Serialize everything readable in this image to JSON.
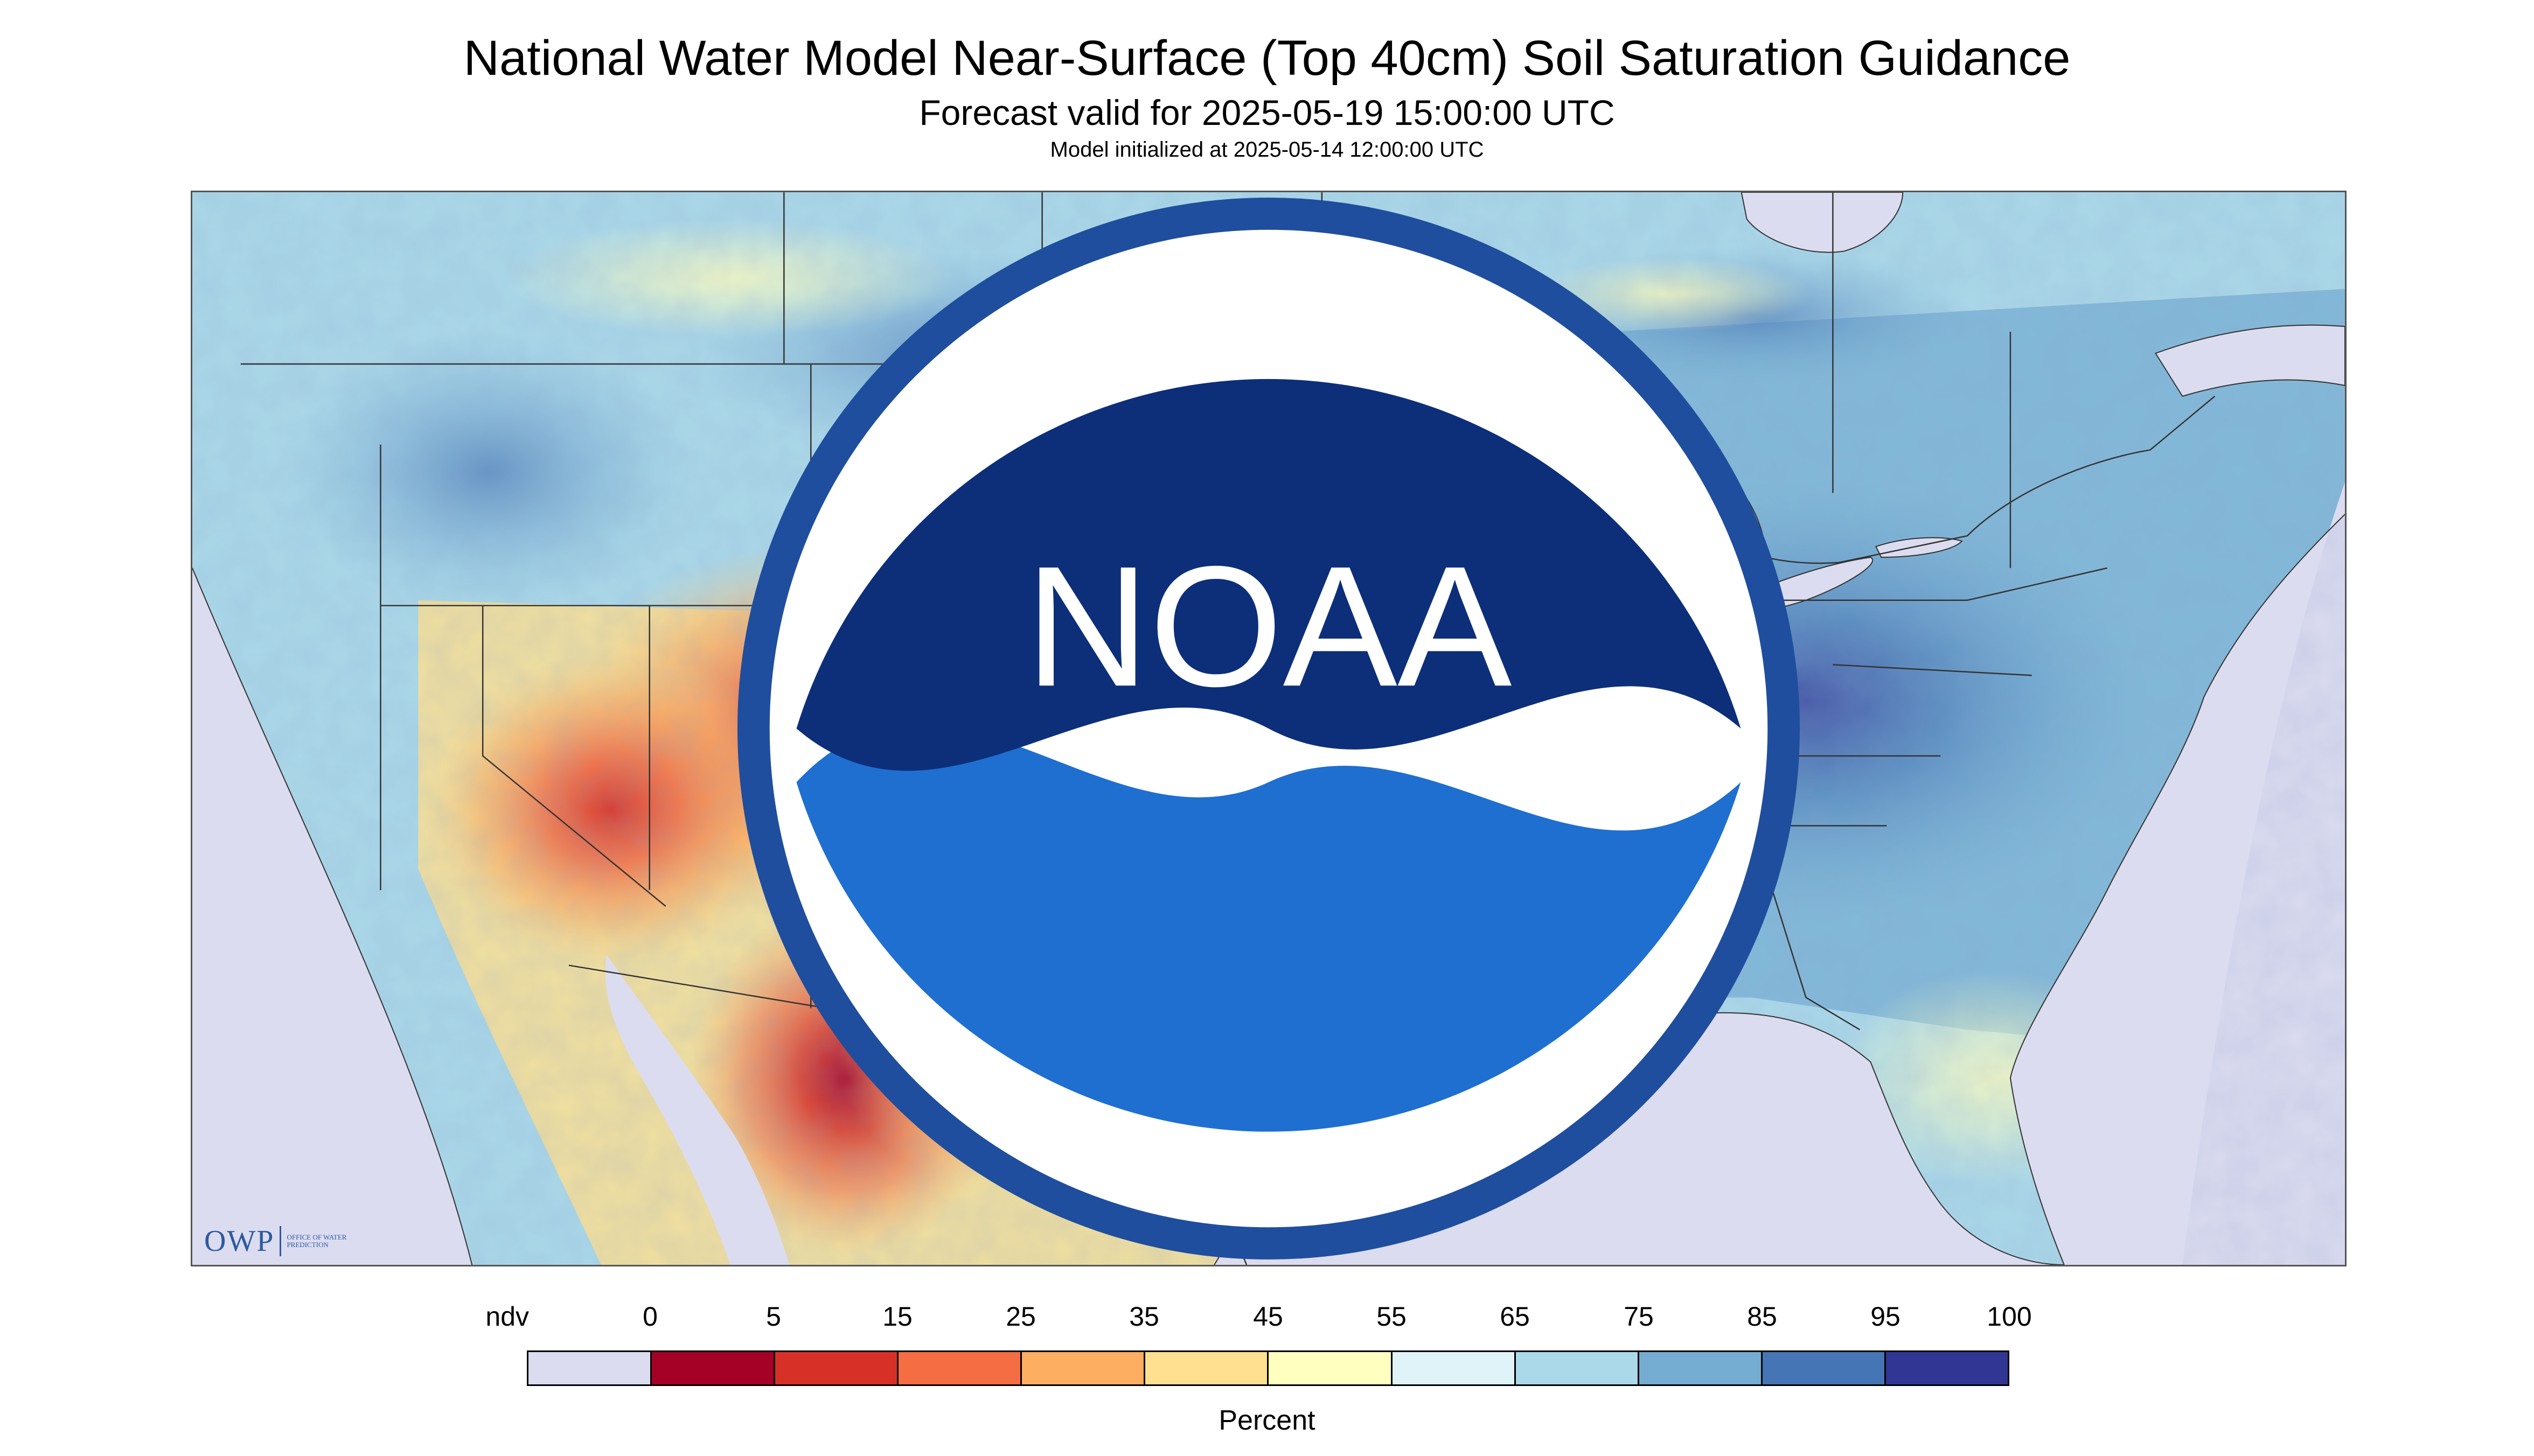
{
  "title": "National Water Model Near-Surface (Top 40cm) Soil Saturation Guidance",
  "subtitle": "Forecast valid for 2025-05-19 15:00:00 UTC",
  "subsubtitle": "Model initialized at 2025-05-14 12:00:00 UTC",
  "logo": {
    "text": "OWP",
    "subtext": "OFFICE OF WATER PREDICTION"
  },
  "noaa_logo": "NOAA",
  "colorbar": {
    "ticks": [
      "ndv",
      "0",
      "5",
      "15",
      "25",
      "35",
      "45",
      "55",
      "65",
      "75",
      "85",
      "95",
      "100"
    ],
    "colors": [
      "#dcdcf0",
      "#a50026",
      "#d73027",
      "#f46d43",
      "#fdae61",
      "#fee090",
      "#ffffbf",
      "#e0f3f8",
      "#abd9e9",
      "#74add1",
      "#4575b4",
      "#313695"
    ],
    "units": "Percent"
  },
  "map_colors": {
    "ndv": "#dcdcf0",
    "water": "#dcdcf0",
    "boundary": "#333333"
  }
}
